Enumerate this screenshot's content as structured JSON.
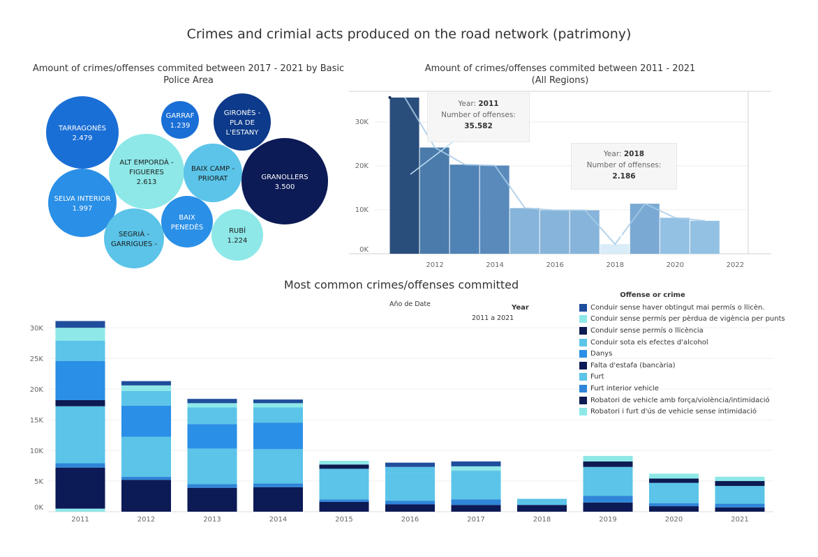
{
  "title": "Crimes and crimial acts produced on the road network (patrimony)",
  "bubble_panel": {
    "title_line1": "Amount of crimes/offenses commited between 2017 - 2021 by Basic",
    "title_line2": "Police Area"
  },
  "line_panel": {
    "title_line1": "Amount of crimes/offenses commited between 2011 - 2021",
    "title_line2": "(All Regions)",
    "tooltips": [
      {
        "year_label": "Year:",
        "year": "2011",
        "offenses_label": "Number of offenses:",
        "offenses": "35.582"
      },
      {
        "year_label": "Year:",
        "year": "2018",
        "offenses_label": "Number of offenses:",
        "offenses": "2.186"
      }
    ]
  },
  "stacked_panel": {
    "title": "Most common crimes/offenses committed",
    "filter_label": "Año de Date",
    "year_header": "Year",
    "year_range": "2011 a 2021",
    "legend_title": "Offense or crime"
  },
  "colors": {
    "c0": "#1f4e9c",
    "c1": "#8ee8e8",
    "c2": "#0d1b52",
    "c3": "#5bc4e8",
    "c4": "#2a8fe6",
    "c5": "#0c1a55",
    "c6": "#5bc4e8",
    "c7": "#2f85d8",
    "c8": "#0d1b52",
    "c9": "#8ee8e8"
  },
  "chart_data": [
    {
      "type": "bubble",
      "bubbles": [
        {
          "label": "TARRAGONÈS",
          "value_text": "2.479",
          "value": 2479,
          "color": "#1a6fd6",
          "text_color": "#ffffff"
        },
        {
          "label": "GARRAF",
          "value_text": "1.239",
          "value": 1239,
          "color": "#1a6fd6",
          "text_color": "#ffffff"
        },
        {
          "label": "GIRONÈS - PLA DE L'ESTANY",
          "value_text": "",
          "value": null,
          "color": "#0d3a8a",
          "text_color": "#ffffff"
        },
        {
          "label": "ALT EMPORDÀ - FIGUERES",
          "value_text": "2.613",
          "value": 2613,
          "color": "#8ee8e8",
          "text_color": "#1a1a1a"
        },
        {
          "label": "BAIX CAMP - PRIORAT",
          "value_text": "",
          "value": null,
          "color": "#5bc4e8",
          "text_color": "#1a1a1a"
        },
        {
          "label": "GRANOLLERS",
          "value_text": "3.500",
          "value": 3500,
          "color": "#0c1a55",
          "text_color": "#ffffff"
        },
        {
          "label": "SELVA INTERIOR",
          "value_text": "1.997",
          "value": 1997,
          "color": "#2a8fe6",
          "text_color": "#ffffff"
        },
        {
          "label": "BAIX PENEDÈS",
          "value_text": "",
          "value": null,
          "color": "#2a8fe6",
          "text_color": "#ffffff"
        },
        {
          "label": "SEGRIÀ - GARRIGUES -",
          "value_text": "",
          "value": null,
          "color": "#5bc4e8",
          "text_color": "#1a1a1a"
        },
        {
          "label": "RUBÍ",
          "value_text": "1.224",
          "value": 1224,
          "color": "#8ee8e8",
          "text_color": "#1a1a1a"
        }
      ]
    },
    {
      "type": "bar",
      "title": "Amount of crimes/offenses commited between 2011 - 2021",
      "subtitle": "(All Regions)",
      "x_ticks": [
        2012,
        2014,
        2016,
        2018,
        2020,
        2022
      ],
      "y_ticks": [
        0,
        10000,
        20000,
        30000
      ],
      "y_tick_labels": [
        "0K",
        "10K",
        "20K",
        "30K"
      ],
      "xlim": [
        2010,
        2023.2
      ],
      "ylim": [
        0,
        37000
      ],
      "categories": [
        2011,
        2012,
        2013,
        2014,
        2015,
        2016,
        2017,
        2018,
        2019,
        2020,
        2021
      ],
      "values": [
        35582,
        24200,
        20300,
        20100,
        10400,
        9900,
        9900,
        2186,
        11400,
        8200,
        7500
      ],
      "colors": [
        "#2a4e7c",
        "#4a7bab",
        "#5083b5",
        "#5a8abc",
        "#86b4da",
        "#86b4da",
        "#86b4da",
        "#d9ecf7",
        "#7aa9d4",
        "#93c1e3",
        "#93c1e3"
      ]
    },
    {
      "type": "bar",
      "stacked": true,
      "title": "Most common crimes/offenses committed",
      "categories": [
        "2011",
        "2012",
        "2013",
        "2014",
        "2015",
        "2016",
        "2017",
        "2018",
        "2019",
        "2020",
        "2021"
      ],
      "y_ticks": [
        0,
        5000,
        10000,
        15000,
        20000,
        25000,
        30000
      ],
      "y_tick_labels": [
        "0K",
        "5K",
        "10K",
        "15K",
        "20K",
        "25K",
        "30K"
      ],
      "ylim": [
        0,
        31500
      ],
      "series": [
        {
          "name": "Conduir sense haver obtingut mai permís o llicèn.",
          "color_key": "c0",
          "values": [
            0,
            0,
            0,
            0,
            0,
            0,
            0,
            0,
            0,
            0,
            0
          ]
        },
        {
          "name": "Conduir sense permís per pèrdua de vigència per punts",
          "color_key": "c1",
          "values": [
            500,
            0,
            0,
            0,
            0,
            0,
            0,
            0,
            0,
            0,
            0
          ]
        },
        {
          "name": "Conduir sense permís o llicència",
          "color_key": "c2",
          "values": [
            0,
            0,
            0,
            0,
            0,
            0,
            0,
            0,
            0,
            0,
            0
          ]
        },
        {
          "name": "Conduir sota els efectes d'alcohol",
          "color_key": "c3",
          "values": [
            0,
            0,
            0,
            0,
            0,
            0,
            0,
            0,
            0,
            0,
            0
          ]
        },
        {
          "name": "Danys",
          "color_key": "c4",
          "values": [
            0,
            0,
            0,
            0,
            0,
            0,
            0,
            0,
            0,
            0,
            0
          ]
        },
        {
          "name": "Falta d'estafa (bancària)",
          "color_key": "c5",
          "values": [
            6700,
            5200,
            3900,
            4000,
            1600,
            1200,
            1100,
            1100,
            1500,
            900,
            700
          ]
        },
        {
          "name": "Furt",
          "color_key": "c6",
          "values": [
            0,
            0,
            0,
            0,
            0,
            0,
            0,
            0,
            0,
            0,
            0
          ]
        },
        {
          "name": "Furt interior vehicle",
          "color_key": "c7",
          "values": [
            700,
            500,
            600,
            600,
            400,
            600,
            900,
            0,
            1100,
            500,
            600
          ]
        },
        {
          "name": "Furt",
          "color_key": "c6",
          "values": [
            9300,
            6500,
            5800,
            5600,
            5000,
            4500,
            4700,
            1000,
            4700,
            3300,
            2900
          ]
        },
        {
          "name": "Robatori de vehicle amb força/violència/intimidació",
          "color_key": "c8",
          "values": [
            1000,
            0,
            0,
            0,
            700,
            0,
            0,
            0,
            900,
            700,
            800
          ]
        },
        {
          "name": "Danys",
          "color_key": "c4",
          "values": [
            6400,
            5100,
            4000,
            4300,
            0,
            0,
            0,
            0,
            0,
            0,
            0
          ]
        },
        {
          "name": "Conduir sense permís o llicència",
          "color_key": "c2",
          "values": [
            0,
            0,
            0,
            0,
            0,
            0,
            0,
            0,
            0,
            0,
            0
          ]
        },
        {
          "name": "Conduir sota els efectes d'alcohol",
          "color_key": "c3",
          "values": [
            3300,
            2400,
            2700,
            2500,
            0,
            1000,
            0,
            0,
            0,
            0,
            0
          ]
        },
        {
          "name": "Robatori i furt d'ús de vehicle sense intimidació",
          "color_key": "c9",
          "values": [
            2100,
            900,
            700,
            700,
            600,
            0,
            700,
            0,
            900,
            800,
            700
          ]
        },
        {
          "name": "Conduir sense haver obtingut mai permís o llicèn.",
          "color_key": "c0",
          "values": [
            1100,
            700,
            700,
            600,
            0,
            700,
            800,
            0,
            0,
            0,
            0
          ]
        }
      ],
      "legend": [
        {
          "name": "Conduir sense haver obtingut mai permís o llicèn.",
          "color": "#1f4e9c"
        },
        {
          "name": "Conduir sense permís per pèrdua de vigència per punts",
          "color": "#8ee8e8"
        },
        {
          "name": "Conduir sense permís o llicència",
          "color": "#0d1b52"
        },
        {
          "name": "Conduir sota els efectes d'alcohol",
          "color": "#5bc4e8"
        },
        {
          "name": "Danys",
          "color": "#2a8fe6"
        },
        {
          "name": "Falta d'estafa (bancària)",
          "color": "#0c1a55"
        },
        {
          "name": "Furt",
          "color": "#5bc4e8"
        },
        {
          "name": "Furt interior vehicle",
          "color": "#2f85d8"
        },
        {
          "name": "Robatori de vehicle amb força/violència/intimidació",
          "color": "#0d1b52"
        },
        {
          "name": "Robatori i furt d'ús de vehicle sense intimidació",
          "color": "#8ee8e8"
        }
      ]
    }
  ]
}
